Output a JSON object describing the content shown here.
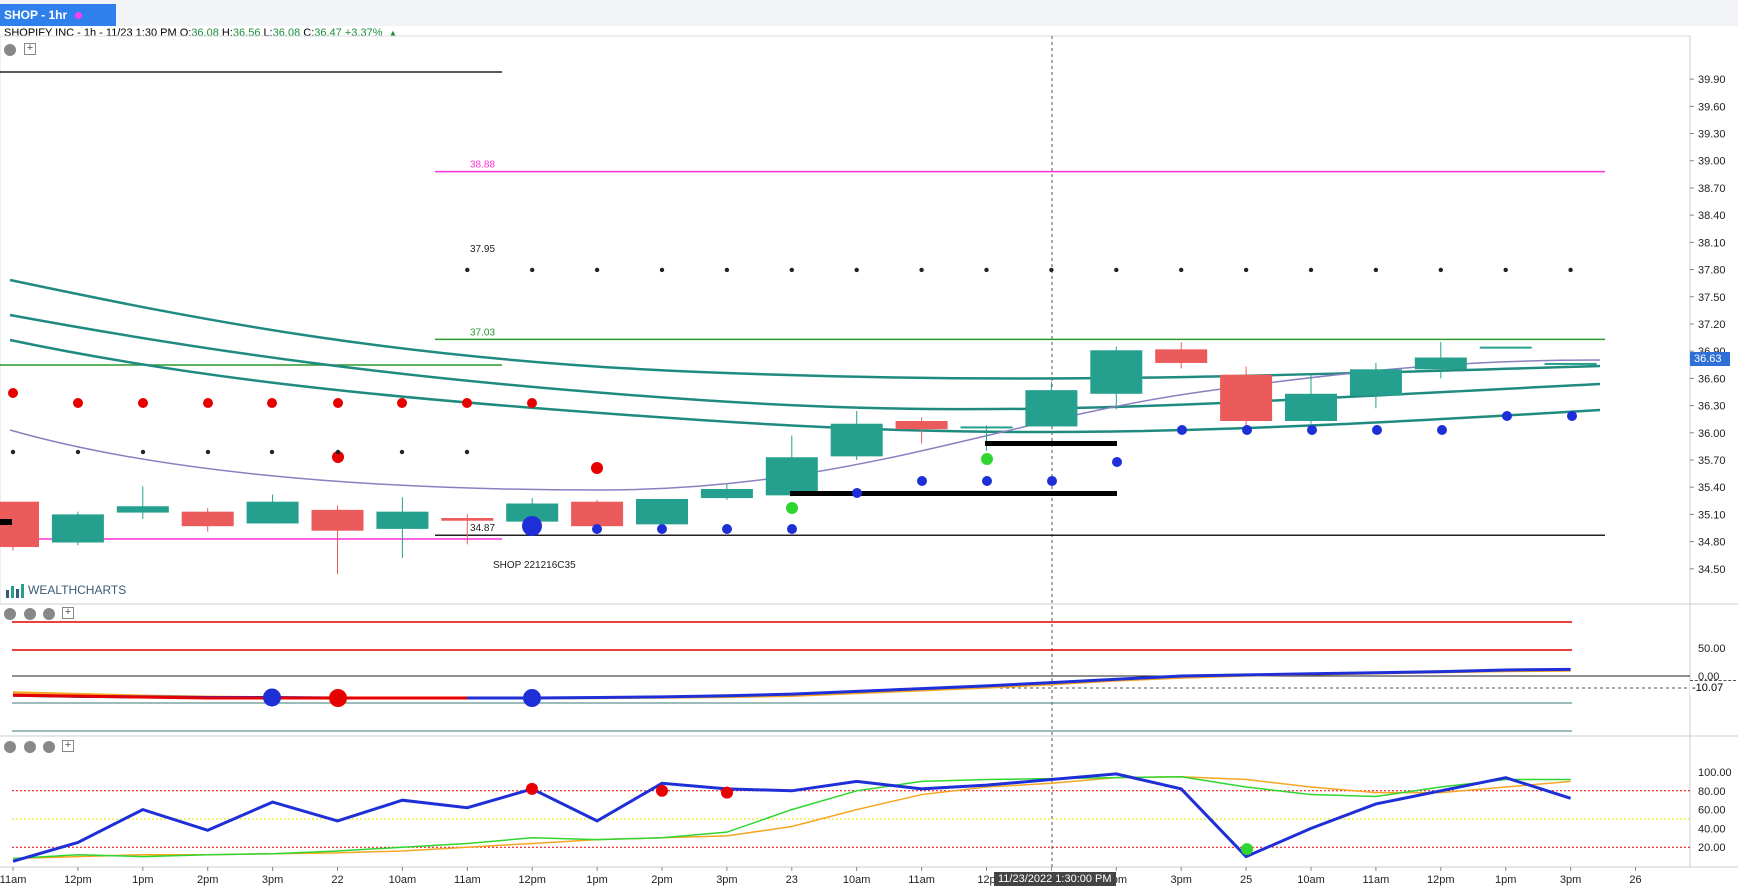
{
  "tab": {
    "label": "SHOP - 1hr"
  },
  "quote": {
    "name": "SHOPIFY INC",
    "interval": "1h",
    "time": "11/23 1:30 PM",
    "open": "36.08",
    "high": "36.56",
    "low": "36.08",
    "close": "36.47",
    "change": "+3.37%"
  },
  "crosshair_label": "11/23/2022 1:30:00 PM",
  "last_price_tag": "36.63",
  "osc_value_tag": "-10.07",
  "watermark": "WEALTHCHARTS",
  "option_label": "SHOP 221216C35",
  "colors": {
    "up": "#26a08e",
    "down": "#ec5b5b",
    "ma": "#1f8a7f",
    "ma_thin": "#8a80c0",
    "blue": "#1f2fd8",
    "orange": "#f5a623",
    "green_line": "#2fd62f",
    "magenta": "#ff30d8",
    "level_green": "#2a9a2a",
    "red": "#e60000"
  },
  "chart_data": [
    {
      "type": "candlestick",
      "panel": "price",
      "y_ticks": [
        "39.90",
        "39.60",
        "39.30",
        "39.00",
        "38.70",
        "38.40",
        "38.10",
        "37.80",
        "37.50",
        "37.20",
        "36.90",
        "36.60",
        "36.30",
        "36.00",
        "35.70",
        "35.40",
        "35.10",
        "34.80",
        "34.50"
      ],
      "x_ticks": [
        "11am",
        "12pm",
        "1pm",
        "2pm",
        "3pm",
        "22",
        "10am",
        "11am",
        "12pm",
        "1pm",
        "2pm",
        "3pm",
        "23",
        "10am",
        "11am",
        "12p",
        "1pm",
        "2pm",
        "3pm",
        "25",
        "10am",
        "11am",
        "12pm",
        "1pm",
        "3pm",
        "26"
      ],
      "ylim": [
        34.2,
        40.1
      ],
      "candles": [
        {
          "o": 35.24,
          "c": 34.74,
          "h": 35.24,
          "l": 34.7
        },
        {
          "o": 34.79,
          "c": 35.1,
          "h": 35.13,
          "l": 34.76
        },
        {
          "o": 35.12,
          "c": 35.19,
          "h": 35.41,
          "l": 35.05
        },
        {
          "o": 35.13,
          "c": 34.97,
          "h": 35.17,
          "l": 34.91
        },
        {
          "o": 35.0,
          "c": 35.24,
          "h": 35.32,
          "l": 35.0
        },
        {
          "o": 35.15,
          "c": 34.92,
          "h": 35.2,
          "l": 34.44
        },
        {
          "o": 34.94,
          "c": 35.13,
          "h": 35.29,
          "l": 34.62
        },
        {
          "o": 35.06,
          "c": 35.03,
          "h": 35.1,
          "l": 34.77
        },
        {
          "o": 35.02,
          "c": 35.22,
          "h": 35.28,
          "l": 35.0
        },
        {
          "o": 35.24,
          "c": 34.97,
          "h": 35.26,
          "l": 34.95
        },
        {
          "o": 34.99,
          "c": 35.27,
          "h": 35.27,
          "l": 34.95
        },
        {
          "o": 35.28,
          "c": 35.38,
          "h": 35.43,
          "l": 35.26
        },
        {
          "o": 35.31,
          "c": 35.73,
          "h": 35.97,
          "l": 35.3
        },
        {
          "o": 35.74,
          "c": 36.1,
          "h": 36.24,
          "l": 35.7
        },
        {
          "o": 36.13,
          "c": 36.04,
          "h": 36.17,
          "l": 35.88
        },
        {
          "o": 36.06,
          "c": 36.07,
          "h": 36.08,
          "l": 35.8
        },
        {
          "o": 36.07,
          "c": 36.47,
          "h": 36.56,
          "l": 36.07
        },
        {
          "o": 36.43,
          "c": 36.91,
          "h": 36.95,
          "l": 36.26
        },
        {
          "o": 36.92,
          "c": 36.77,
          "h": 37.0,
          "l": 36.71
        },
        {
          "o": 36.64,
          "c": 36.13,
          "h": 36.73,
          "l": 36.06
        },
        {
          "o": 36.13,
          "c": 36.43,
          "h": 36.65,
          "l": 36.1
        },
        {
          "o": 36.41,
          "c": 36.7,
          "h": 36.77,
          "l": 36.27
        },
        {
          "o": 36.7,
          "c": 36.83,
          "h": 37.0,
          "l": 36.6
        },
        {
          "o": 36.95,
          "c": 36.95,
          "h": 36.95,
          "l": 36.95
        },
        {
          "o": 36.77,
          "c": 36.77,
          "h": 36.77,
          "l": 36.77
        }
      ],
      "levels": [
        {
          "label": "38.88",
          "value": 38.88,
          "color": "magenta",
          "style": "solid"
        },
        {
          "label": "37.95",
          "value": 37.95,
          "color": "black",
          "style": "dots"
        },
        {
          "label": "37.03",
          "value": 37.03,
          "color": "level_green",
          "style": "solid"
        },
        {
          "label": "34.87",
          "value": 34.87,
          "color": "black",
          "style": "solid"
        }
      ]
    },
    {
      "type": "line",
      "panel": "oscillator_1",
      "y_ticks": [
        "50.00",
        "0.00"
      ],
      "series": [
        {
          "values": [
            -35,
            -37,
            -38,
            -39,
            -39,
            -40,
            -40,
            -40,
            -40,
            -39,
            -38,
            -36,
            -33,
            -28,
            -23,
            -18,
            -12,
            -6,
            0,
            2,
            4,
            6,
            8,
            11,
            12
          ]
        },
        {
          "values": [
            -30,
            -33,
            -36,
            -38,
            -39,
            -40,
            -40,
            -40,
            -40,
            -40,
            -39,
            -38,
            -36,
            -31,
            -26,
            -21,
            -15,
            -8,
            -3,
            1,
            3,
            5,
            7,
            9,
            10
          ]
        }
      ]
    },
    {
      "type": "line",
      "panel": "oscillator_2",
      "y_ticks": [
        "100.00",
        "80.00",
        "60.00",
        "40.00",
        "20.00"
      ],
      "series": [
        {
          "values": [
            5,
            25,
            60,
            38,
            68,
            48,
            70,
            62,
            82,
            48,
            88,
            82,
            80,
            90,
            82,
            86,
            92,
            98,
            82,
            10,
            40,
            66,
            80,
            94,
            72
          ]
        },
        {
          "values": [
            8,
            12,
            10,
            12,
            13,
            16,
            20,
            24,
            30,
            28,
            30,
            36,
            60,
            80,
            90,
            92,
            93,
            94,
            95,
            84,
            76,
            74,
            84,
            92,
            92
          ]
        },
        {
          "values": [
            8,
            10,
            12,
            12,
            13,
            14,
            16,
            20,
            24,
            28,
            30,
            32,
            42,
            60,
            76,
            84,
            88,
            94,
            95,
            92,
            84,
            78,
            78,
            84,
            90
          ]
        }
      ]
    }
  ]
}
